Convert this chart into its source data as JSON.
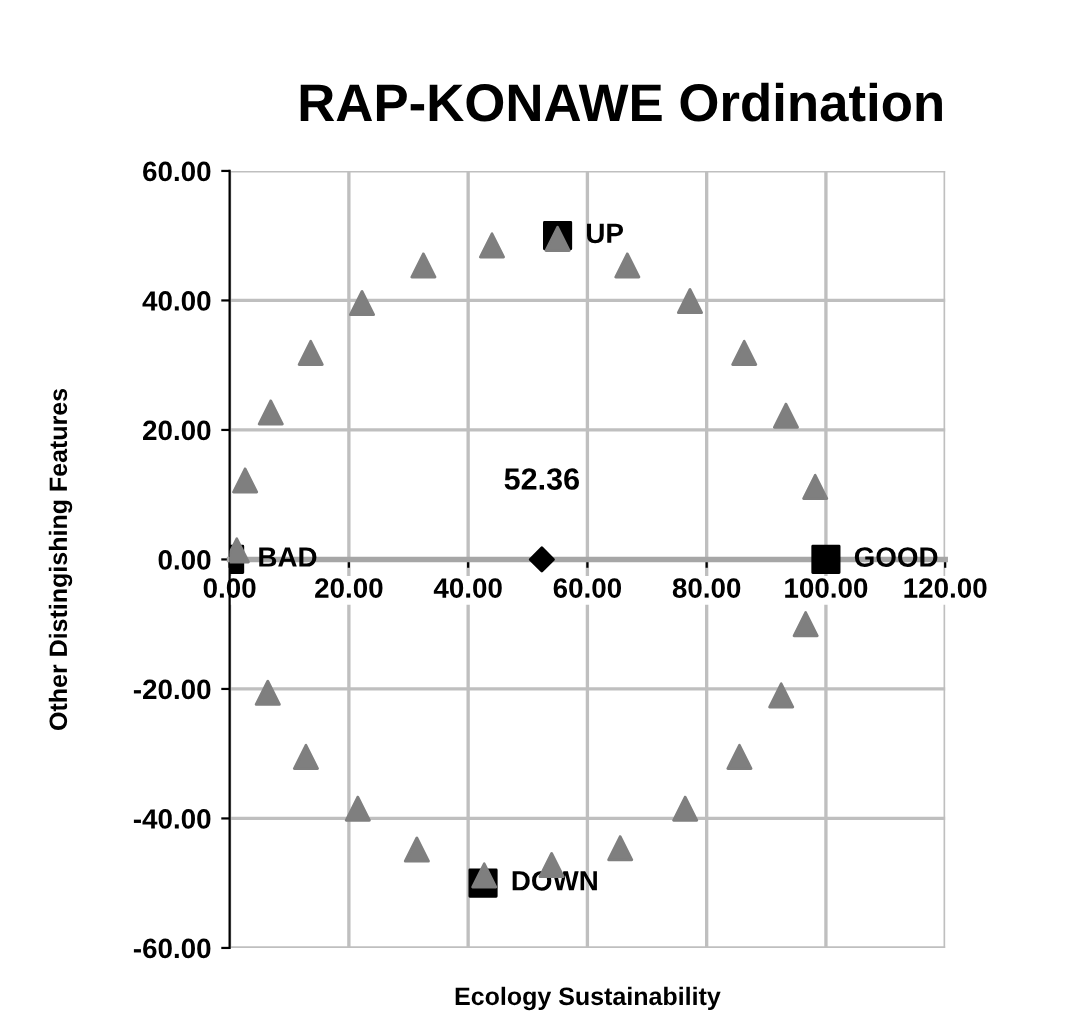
{
  "chart_data": {
    "type": "scatter",
    "title": "RAP-KONAWE Ordination",
    "xlabel": "Ecology Sustainability",
    "ylabel": "Other Distingishing Features",
    "xlim": [
      0,
      120
    ],
    "ylim": [
      -60,
      60
    ],
    "xticks": [
      {
        "value": 0,
        "label": "0.00"
      },
      {
        "value": 20,
        "label": "20.00"
      },
      {
        "value": 40,
        "label": "40.00"
      },
      {
        "value": 60,
        "label": "60.00"
      },
      {
        "value": 80,
        "label": "80.00"
      },
      {
        "value": 100,
        "label": "100.00"
      },
      {
        "value": 120,
        "label": "120.00"
      }
    ],
    "yticks": [
      {
        "value": -60,
        "label": "-60.00"
      },
      {
        "value": -40,
        "label": "-40.00"
      },
      {
        "value": -20,
        "label": "-20.00"
      },
      {
        "value": 0,
        "label": "0.00"
      },
      {
        "value": 20,
        "label": "20.00"
      },
      {
        "value": 40,
        "label": "40.00"
      },
      {
        "value": 60,
        "label": "60.00"
      }
    ],
    "grid": true,
    "series": [
      {
        "color": "#7f7f7f",
        "marker": "triangle",
        "x": [
          1.2,
          2.6,
          6.9,
          13.6,
          22.2,
          32.5,
          44.0,
          55.0,
          66.7,
          77.2,
          86.3,
          93.3,
          98.2,
          96.6,
          92.5,
          85.5,
          76.4,
          65.5,
          54.0,
          42.7,
          31.4,
          21.5,
          12.8,
          6.4
        ],
        "values": [
          1.4,
          12.2,
          22.7,
          31.9,
          39.6,
          45.4,
          48.5,
          49.5,
          45.4,
          39.9,
          31.9,
          22.2,
          11.2,
          -10,
          -21,
          -30.5,
          -38.5,
          -44.6,
          -47.2,
          -48.8,
          -44.8,
          -38.5,
          -30.5,
          -20.6
        ]
      },
      {
        "color": "#000000",
        "marker": "square",
        "x": [
          0,
          100,
          55,
          42.5
        ],
        "values": [
          0,
          0,
          50,
          -50
        ]
      },
      {
        "color": "#000000",
        "marker": "diamond",
        "x": [
          52.36
        ],
        "values": [
          0
        ]
      }
    ],
    "annotations": [
      {
        "text": "UP",
        "x": 55,
        "y": 50
      },
      {
        "text": "DOWN",
        "x": 42.5,
        "y": -50
      },
      {
        "text": "BAD",
        "x": 0,
        "y": 0
      },
      {
        "text": "GOOD",
        "x": 100,
        "y": 0
      },
      {
        "text": "52.36",
        "x": 52.36,
        "y": 0
      }
    ]
  }
}
